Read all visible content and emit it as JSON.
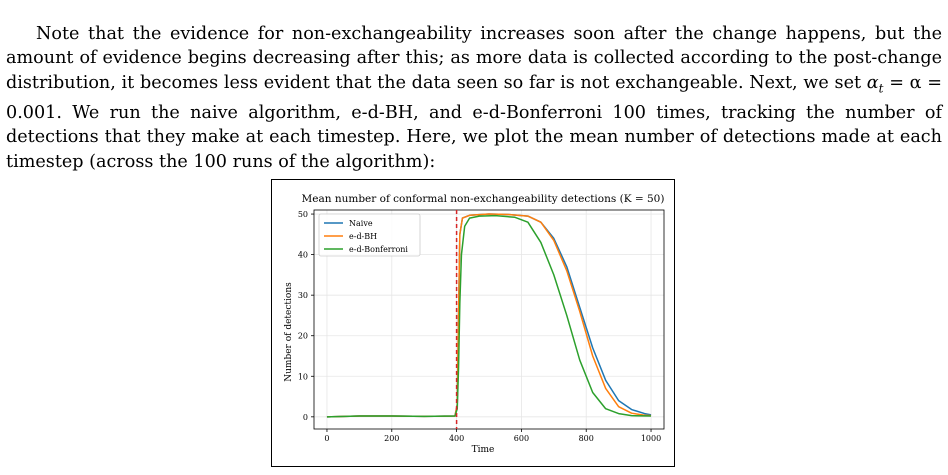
{
  "paragraph": {
    "text_a": "Note that the evidence for non-exchangeability increases soon after the change happens, but the amount of evidence begins decreasing after this; as more data is collected according to the post-change distribution, it becomes less evident that the data seen so far is not exchangeable. Next, we set ",
    "math_alpha_t": "α",
    "math_sub_t": "t",
    "math_eq": " = α = 0.001",
    "text_b": ". We run the naive algorithm, e-d-BH, and e-d-Bonferroni 100 times, tracking the number of detections that they make at each timestep. Here, we plot the mean number of detections made at each timestep (across the 100 runs of the algorithm):"
  },
  "chart_data": {
    "type": "line",
    "title": "Mean number of conformal non-exchangeability detections (K = 50)",
    "xlabel": "Time",
    "ylabel": "Number of detections",
    "xlim": [
      -40,
      1040
    ],
    "ylim": [
      -3,
      51
    ],
    "xticks": [
      0,
      200,
      400,
      600,
      800,
      1000
    ],
    "yticks": [
      0,
      10,
      20,
      30,
      40,
      50
    ],
    "grid": true,
    "legend_position": "top-left",
    "changepoint": 400,
    "changepoint_color": "#d62728",
    "series": [
      {
        "name": "Naive",
        "color": "#1f77b4",
        "points": [
          [
            0,
            0
          ],
          [
            100,
            0.2
          ],
          [
            200,
            0.2
          ],
          [
            300,
            0.1
          ],
          [
            395,
            0.2
          ],
          [
            402,
            3
          ],
          [
            406,
            25
          ],
          [
            410,
            45
          ],
          [
            418,
            49
          ],
          [
            440,
            49.7
          ],
          [
            500,
            50
          ],
          [
            560,
            49.9
          ],
          [
            620,
            49.5
          ],
          [
            660,
            48
          ],
          [
            700,
            44
          ],
          [
            740,
            37
          ],
          [
            780,
            27
          ],
          [
            820,
            17
          ],
          [
            860,
            9
          ],
          [
            900,
            4
          ],
          [
            940,
            1.8
          ],
          [
            980,
            0.8
          ],
          [
            1000,
            0.5
          ]
        ]
      },
      {
        "name": "e-d-BH",
        "color": "#ff7f0e",
        "points": [
          [
            0,
            0
          ],
          [
            100,
            0.2
          ],
          [
            200,
            0.2
          ],
          [
            300,
            0.1
          ],
          [
            395,
            0.2
          ],
          [
            402,
            3
          ],
          [
            406,
            25
          ],
          [
            410,
            45
          ],
          [
            418,
            49
          ],
          [
            440,
            49.7
          ],
          [
            500,
            50
          ],
          [
            560,
            49.9
          ],
          [
            620,
            49.5
          ],
          [
            660,
            48
          ],
          [
            700,
            43.5
          ],
          [
            740,
            36
          ],
          [
            780,
            26
          ],
          [
            820,
            15
          ],
          [
            860,
            7
          ],
          [
            900,
            2.5
          ],
          [
            940,
            0.9
          ],
          [
            980,
            0.4
          ],
          [
            1000,
            0.3
          ]
        ]
      },
      {
        "name": "e-d-Bonferroni",
        "color": "#2ca02c",
        "points": [
          [
            0,
            0
          ],
          [
            100,
            0.2
          ],
          [
            200,
            0.2
          ],
          [
            300,
            0.1
          ],
          [
            395,
            0.2
          ],
          [
            402,
            2
          ],
          [
            406,
            12
          ],
          [
            410,
            28
          ],
          [
            415,
            40
          ],
          [
            425,
            47
          ],
          [
            440,
            49
          ],
          [
            470,
            49.5
          ],
          [
            520,
            49.6
          ],
          [
            580,
            49.2
          ],
          [
            620,
            48
          ],
          [
            660,
            43
          ],
          [
            700,
            35
          ],
          [
            740,
            25
          ],
          [
            780,
            14
          ],
          [
            820,
            6
          ],
          [
            860,
            2
          ],
          [
            900,
            0.8
          ],
          [
            940,
            0.3
          ],
          [
            1000,
            0.2
          ]
        ]
      }
    ]
  }
}
